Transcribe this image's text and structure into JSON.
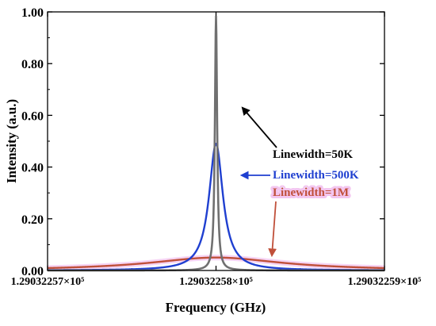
{
  "chart_data": {
    "type": "line",
    "title": "",
    "xlabel": "Frequency (GHz)",
    "ylabel": "Intensity (a.u.)",
    "x_center": 129032258,
    "xlim": [
      -10,
      10
    ],
    "ylim": [
      0,
      1.0
    ],
    "x_tick_labels": [
      "1.29032257×10⁵",
      "1.29032258×10⁵",
      "1.29032259×10⁵"
    ],
    "y_tick_labels": [
      "0.00",
      "0.20",
      "0.40",
      "0.60",
      "0.80",
      "1.00"
    ],
    "grid": false,
    "series": [
      {
        "name": "Linewidth=50K",
        "color": "#707070",
        "peak": 0.985,
        "hwhm": 0.08
      },
      {
        "name": "Linewidth=500K",
        "color": "#1f3fd0",
        "peak": 0.49,
        "hwhm": 0.5
      },
      {
        "name": "Linewidth=1M",
        "color": "#c0503a",
        "peak": 0.05,
        "hwhm": 4.8
      }
    ],
    "annotations": [
      {
        "text": "Linewidth=50K",
        "color": "#000000",
        "target_series": 0
      },
      {
        "text": "Linewidth=500K",
        "color": "#1f3fd0",
        "target_series": 1
      },
      {
        "text": "Linewidth=1M",
        "color": "#c0503a",
        "target_series": 2
      }
    ]
  }
}
